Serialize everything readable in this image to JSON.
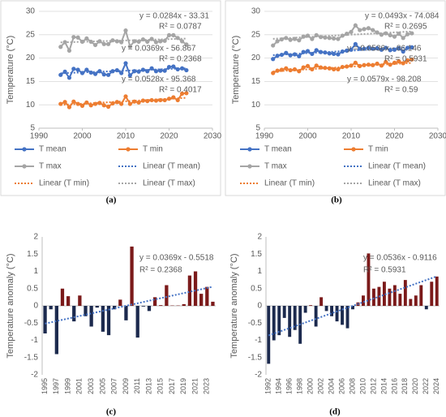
{
  "chart_data": [
    {
      "type": "line",
      "caption": "(a)",
      "y_label": "Temperature (°C)",
      "xlim": [
        1990,
        2030
      ],
      "xticks": [
        1990,
        2000,
        2010,
        2020,
        2030
      ],
      "ylim": [
        5,
        30
      ],
      "yticks": [
        5,
        10,
        15,
        20,
        25,
        30
      ],
      "grid": true,
      "x": [
        1995,
        1996,
        1997,
        1998,
        1999,
        2000,
        2001,
        2002,
        2003,
        2004,
        2005,
        2006,
        2007,
        2008,
        2009,
        2010,
        2011,
        2012,
        2013,
        2014,
        2015,
        2016,
        2017,
        2018,
        2019,
        2020,
        2021,
        2022,
        2023,
        2024
      ],
      "series": [
        {
          "name": "T mean",
          "color": "#4472c4",
          "values": [
            16.4,
            17.1,
            15.8,
            17.7,
            17.5,
            16.8,
            17.5,
            16.9,
            16.6,
            17.2,
            16.5,
            16.4,
            17.2,
            17.4,
            16.8,
            18.9,
            16.3,
            17.2,
            17.1,
            17.5,
            17.2,
            17.8,
            17.2,
            17.3,
            17.3,
            18.1,
            18.2,
            17.6,
            17.8,
            17.4
          ]
        },
        {
          "name": "T min",
          "color": "#ed7d31",
          "values": [
            10.2,
            10.6,
            9.5,
            10.7,
            10.2,
            9.8,
            10.5,
            9.9,
            10.2,
            10.4,
            9.9,
            9.6,
            10.3,
            10.6,
            10.2,
            11.8,
            10.2,
            10.7,
            10.5,
            10.9,
            10.8,
            11.0,
            10.9,
            11.0,
            11.0,
            11.3,
            11.6,
            11.0,
            12.4,
            12.5
          ]
        },
        {
          "name": "T max",
          "color": "#a5a5a5",
          "values": [
            22.4,
            23.4,
            21.6,
            24.5,
            24.4,
            23.5,
            24.2,
            23.5,
            22.8,
            23.6,
            23.0,
            23.0,
            23.8,
            23.6,
            23.4,
            25.9,
            22.5,
            23.6,
            23.5,
            24.0,
            23.5,
            24.1,
            23.4,
            23.6,
            23.7,
            24.9,
            24.9,
            24.3,
            23.6,
            22.9
          ]
        }
      ],
      "trendlines": [
        {
          "name": "Linear (T mean)",
          "color": "#4472c4",
          "x": [
            1995,
            2024
          ],
          "values": [
            16.75,
            17.82
          ]
        },
        {
          "name": "Linear (T min)",
          "color": "#ed7d31",
          "x": [
            1995,
            2024
          ],
          "values": [
            9.97,
            11.5
          ]
        },
        {
          "name": "Linear (T max)",
          "color": "#a5a5a5",
          "x": [
            1995,
            2024
          ],
          "values": [
            23.35,
            24.17
          ]
        }
      ],
      "annotations": [
        "y = 0.0284x - 33.31",
        "R² = 0.0787",
        "y = 0.0369x - 56.867",
        "R² = 0.2368",
        "y = 0.0528x - 95.368",
        "R² = 0.4017"
      ]
    },
    {
      "type": "line",
      "caption": "(b)",
      "y_label": "Temperature (°C)",
      "xlim": [
        1990,
        2030
      ],
      "xticks": [
        1990,
        2000,
        2010,
        2020,
        2030
      ],
      "ylim": [
        5,
        30
      ],
      "yticks": [
        5,
        10,
        15,
        20,
        25,
        30
      ],
      "grid": true,
      "x": [
        1992,
        1993,
        1994,
        1995,
        1996,
        1997,
        1998,
        1999,
        2000,
        2001,
        2002,
        2003,
        2004,
        2005,
        2006,
        2007,
        2008,
        2009,
        2010,
        2011,
        2012,
        2013,
        2014,
        2015,
        2016,
        2017,
        2018,
        2019,
        2020,
        2021,
        2022,
        2023,
        2024
      ],
      "series": [
        {
          "name": "T mean",
          "color": "#4472c4",
          "values": [
            19.8,
            20.5,
            20.7,
            21.1,
            20.6,
            20.8,
            20.4,
            21.3,
            21.5,
            20.9,
            21.7,
            21.3,
            21.2,
            21.0,
            20.9,
            20.8,
            21.4,
            21.6,
            21.8,
            23.0,
            22.0,
            22.0,
            22.2,
            22.0,
            22.1,
            21.8,
            22.2,
            21.7,
            21.8,
            22.1,
            21.4,
            22.2,
            22.3
          ]
        },
        {
          "name": "T min",
          "color": "#ed7d31",
          "values": [
            16.8,
            17.3,
            17.5,
            17.8,
            17.4,
            17.6,
            17.2,
            18.0,
            18.3,
            17.6,
            18.4,
            18.0,
            17.9,
            17.8,
            17.6,
            17.6,
            18.1,
            18.2,
            18.4,
            19.0,
            18.3,
            18.5,
            18.6,
            18.5,
            18.8,
            18.4,
            19.2,
            18.6,
            19.0,
            19.3,
            18.9,
            19.5,
            19.7
          ]
        },
        {
          "name": "T max",
          "color": "#a5a5a5",
          "values": [
            22.7,
            23.6,
            24.0,
            24.3,
            23.9,
            24.1,
            23.8,
            24.6,
            24.8,
            24.1,
            24.9,
            24.5,
            24.4,
            24.3,
            24.2,
            24.1,
            24.8,
            25.2,
            25.6,
            27.0,
            26.0,
            26.2,
            26.4,
            26.0,
            25.5,
            25.0,
            25.3,
            24.9,
            24.6,
            25.2,
            24.3,
            25.1,
            25.3
          ]
        }
      ],
      "trendlines": [
        {
          "name": "Linear (T mean)",
          "color": "#4472c4",
          "x": [
            1992,
            2024
          ],
          "values": [
            20.63,
            22.34
          ]
        },
        {
          "name": "Linear (T min)",
          "color": "#ed7d31",
          "x": [
            1992,
            2024
          ],
          "values": [
            17.13,
            18.98
          ]
        },
        {
          "name": "Linear (T max)",
          "color": "#a5a5a5",
          "x": [
            1992,
            2024
          ],
          "values": [
            24.12,
            25.7
          ]
        }
      ],
      "annotations": [
        "y = 0.0493x - 74.084",
        "R² = 0.2695",
        "y = 0.0536x - 86.146",
        "R² = 0.5931",
        "y = 0.0579x - 98.208",
        "R² = 0.59"
      ]
    },
    {
      "type": "bar",
      "caption": "(c)",
      "y_label": "Temperature anomaly (°C)",
      "ylim": [
        -2,
        2
      ],
      "yticks": [
        -2,
        -1.5,
        -1,
        -0.5,
        0,
        0.5,
        1,
        1.5,
        2
      ],
      "colors": {
        "positive": "#7b1a1a",
        "negative": "#1c2a4e"
      },
      "categories": [
        "1995",
        null,
        "1997",
        null,
        "1999",
        null,
        "2001",
        null,
        "2003",
        null,
        "2005",
        null,
        "2007",
        null,
        "2009",
        null,
        "2011",
        null,
        "2013",
        null,
        "2015",
        null,
        "2017",
        null,
        "2019",
        null,
        "2021",
        null,
        "2023",
        null
      ],
      "values": [
        -0.8,
        -0.1,
        -1.4,
        0.5,
        0.28,
        -0.45,
        0.3,
        -0.3,
        -0.6,
        -0.05,
        -0.75,
        -0.85,
        -0.1,
        0.18,
        -0.42,
        1.72,
        -0.92,
        -0.02,
        -0.15,
        0.25,
        0.02,
        0.6,
        0.01,
        0.01,
        0.05,
        0.88,
        1.0,
        0.35,
        0.55,
        0.12
      ],
      "trendline": {
        "color": "#4472c4",
        "values": [
          -0.515,
          0.555
        ]
      },
      "annotations": [
        "y = 0.0369x - 0.5518",
        "R² = 0.2368"
      ]
    },
    {
      "type": "bar",
      "caption": "(d)",
      "y_label": "Temperature anomaly (°C)",
      "ylim": [
        -2,
        2
      ],
      "yticks": [
        -2,
        -1.5,
        -1,
        -0.5,
        0,
        0.5,
        1,
        1.5,
        2
      ],
      "colors": {
        "positive": "#7b1a1a",
        "negative": "#1c2a4e"
      },
      "categories": [
        "1992",
        null,
        "1994",
        null,
        "1996",
        null,
        "1998",
        null,
        "2000",
        null,
        "2002",
        null,
        "2004",
        null,
        "2006",
        null,
        "2008",
        null,
        "2010",
        null,
        "2012",
        null,
        "2014",
        null,
        "2016",
        null,
        "2018",
        null,
        "2020",
        null,
        "2022",
        null,
        "2024"
      ],
      "values": [
        -1.68,
        -1.0,
        -0.85,
        -0.35,
        -0.9,
        -0.7,
        -1.1,
        -0.2,
        0.02,
        -0.6,
        0.25,
        -0.15,
        -0.3,
        -0.45,
        -0.55,
        -0.65,
        -0.1,
        0.1,
        0.3,
        1.52,
        0.5,
        0.55,
        0.7,
        0.5,
        0.6,
        0.35,
        0.75,
        0.2,
        0.3,
        0.6,
        -0.1,
        0.7,
        0.85
      ],
      "trendline": {
        "color": "#4472c4",
        "values": [
          -0.858,
          0.857
        ]
      },
      "annotations": [
        "y = 0.0536x - 0.9116",
        "R² = 0.5931"
      ]
    }
  ]
}
